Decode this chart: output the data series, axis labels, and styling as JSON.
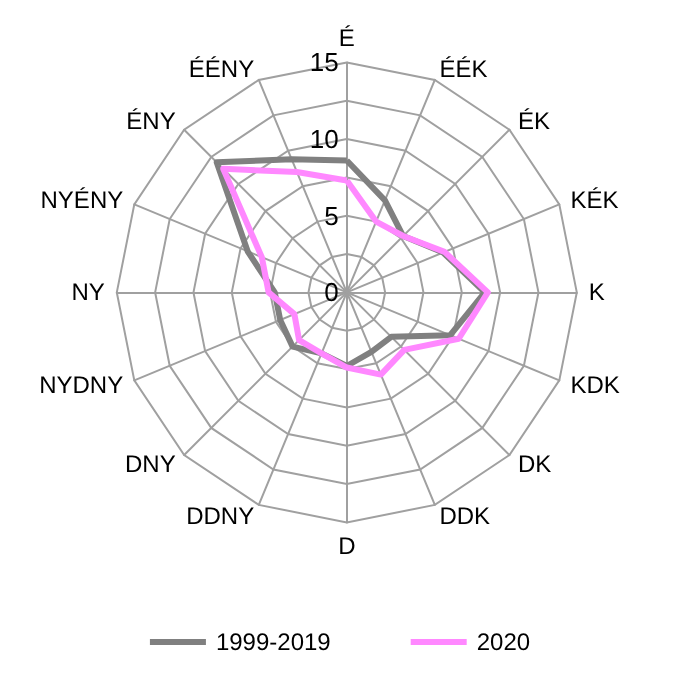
{
  "chart_data": {
    "type": "radar",
    "categories": [
      "É",
      "ÉÉK",
      "ÉK",
      "KÉK",
      "K",
      "KDK",
      "DK",
      "DDK",
      "D",
      "DDNY",
      "DNY",
      "NYDNY",
      "NY",
      "NYÉNY",
      "ÉNY",
      "ÉÉNY"
    ],
    "series": [
      {
        "name": "1999-2019",
        "color": "#808080",
        "values": [
          8.6,
          6.5,
          5.2,
          6.8,
          9.0,
          7.3,
          4.1,
          4.2,
          4.8,
          4.3,
          5.0,
          4.7,
          4.7,
          7.0,
          12.0,
          9.4
        ]
      },
      {
        "name": "2020",
        "color": "#ff88ff",
        "values": [
          7.3,
          5.0,
          5.2,
          6.9,
          9.2,
          7.9,
          5.3,
          5.8,
          4.9,
          4.3,
          4.4,
          3.7,
          5.1,
          6.0,
          11.4,
          8.5
        ]
      }
    ],
    "ylim": [
      0,
      15
    ],
    "yticks": [
      0,
      5,
      10,
      15
    ],
    "grid": true,
    "legend": "bottom",
    "marker": "none",
    "line_style": "solid"
  }
}
